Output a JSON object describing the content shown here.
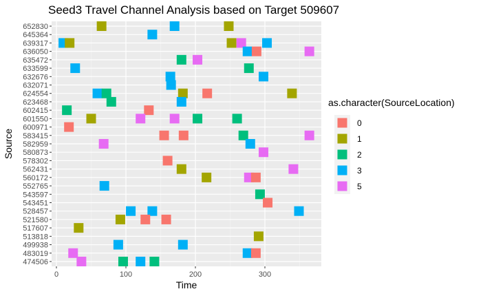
{
  "chart_data": {
    "type": "scatter",
    "title": "Seed3 Travel Channel Analysis based on Target 509607",
    "xlabel": "Time",
    "ylabel": "Source",
    "xlim": [
      0,
      370
    ],
    "xticks": [
      0,
      100,
      200,
      300
    ],
    "grid": true,
    "legend_placement": "right",
    "legend_title": "as.character(SourceLocation)",
    "legend": [
      {
        "key": "0",
        "label": "0",
        "color": "#F8766D"
      },
      {
        "key": "1",
        "label": "1",
        "color": "#A3A500"
      },
      {
        "key": "2",
        "label": "2",
        "color": "#00BF7D"
      },
      {
        "key": "3",
        "label": "3",
        "color": "#00B0F6"
      },
      {
        "key": "5",
        "label": "5",
        "color": "#E76BF3"
      }
    ],
    "categories": [
      "474506",
      "483019",
      "499938",
      "513818",
      "517607",
      "521580",
      "528457",
      "543451",
      "543597",
      "552765",
      "560172",
      "562431",
      "578302",
      "580873",
      "582959",
      "583415",
      "600971",
      "601550",
      "602415",
      "623468",
      "624554",
      "632071",
      "632676",
      "633599",
      "635472",
      "636050",
      "639317",
      "645364",
      "652830"
    ],
    "points": [
      {
        "source": "652830",
        "time": 65,
        "location": "1"
      },
      {
        "source": "652830",
        "time": 170,
        "location": "3"
      },
      {
        "source": "652830",
        "time": 248,
        "location": "1"
      },
      {
        "source": "645364",
        "time": 138,
        "location": "3"
      },
      {
        "source": "639317",
        "time": 10,
        "location": "3"
      },
      {
        "source": "639317",
        "time": 19,
        "location": "1"
      },
      {
        "source": "639317",
        "time": 252,
        "location": "1"
      },
      {
        "source": "639317",
        "time": 266,
        "location": "5"
      },
      {
        "source": "639317",
        "time": 303,
        "location": "3"
      },
      {
        "source": "636050",
        "time": 275,
        "location": "3"
      },
      {
        "source": "636050",
        "time": 288,
        "location": "0"
      },
      {
        "source": "636050",
        "time": 364,
        "location": "5"
      },
      {
        "source": "635472",
        "time": 180,
        "location": "2"
      },
      {
        "source": "635472",
        "time": 203,
        "location": "5"
      },
      {
        "source": "633599",
        "time": 27,
        "location": "3"
      },
      {
        "source": "633599",
        "time": 277,
        "location": "2"
      },
      {
        "source": "632676",
        "time": 164,
        "location": "3"
      },
      {
        "source": "632676",
        "time": 298,
        "location": "3"
      },
      {
        "source": "632071",
        "time": 165,
        "location": "3"
      },
      {
        "source": "624554",
        "time": 59,
        "location": "3"
      },
      {
        "source": "624554",
        "time": 72,
        "location": "2"
      },
      {
        "source": "624554",
        "time": 182,
        "location": "1"
      },
      {
        "source": "624554",
        "time": 217,
        "location": "0"
      },
      {
        "source": "624554",
        "time": 339,
        "location": "1"
      },
      {
        "source": "623468",
        "time": 79,
        "location": "2"
      },
      {
        "source": "623468",
        "time": 180,
        "location": "3"
      },
      {
        "source": "602415",
        "time": 15,
        "location": "2"
      },
      {
        "source": "602415",
        "time": 133,
        "location": "0"
      },
      {
        "source": "601550",
        "time": 50,
        "location": "1"
      },
      {
        "source": "601550",
        "time": 121,
        "location": "5"
      },
      {
        "source": "601550",
        "time": 170,
        "location": "5"
      },
      {
        "source": "601550",
        "time": 203,
        "location": "2"
      },
      {
        "source": "601550",
        "time": 260,
        "location": "2"
      },
      {
        "source": "600971",
        "time": 18,
        "location": "0"
      },
      {
        "source": "583415",
        "time": 155,
        "location": "0"
      },
      {
        "source": "583415",
        "time": 183,
        "location": "0"
      },
      {
        "source": "583415",
        "time": 269,
        "location": "2"
      },
      {
        "source": "583415",
        "time": 364,
        "location": "5"
      },
      {
        "source": "582959",
        "time": 68,
        "location": "5"
      },
      {
        "source": "582959",
        "time": 279,
        "location": "3"
      },
      {
        "source": "580873",
        "time": 298,
        "location": "5"
      },
      {
        "source": "578302",
        "time": 160,
        "location": "0"
      },
      {
        "source": "562431",
        "time": 180,
        "location": "1"
      },
      {
        "source": "562431",
        "time": 341,
        "location": "5"
      },
      {
        "source": "560172",
        "time": 216,
        "location": "1"
      },
      {
        "source": "560172",
        "time": 277,
        "location": "5"
      },
      {
        "source": "560172",
        "time": 287,
        "location": "0"
      },
      {
        "source": "552765",
        "time": 69,
        "location": "3"
      },
      {
        "source": "543597",
        "time": 293,
        "location": "2"
      },
      {
        "source": "543451",
        "time": 304,
        "location": "0"
      },
      {
        "source": "528457",
        "time": 107,
        "location": "3"
      },
      {
        "source": "528457",
        "time": 138,
        "location": "3"
      },
      {
        "source": "528457",
        "time": 349,
        "location": "3"
      },
      {
        "source": "521580",
        "time": 92,
        "location": "1"
      },
      {
        "source": "521580",
        "time": 128,
        "location": "0"
      },
      {
        "source": "521580",
        "time": 158,
        "location": "0"
      },
      {
        "source": "517607",
        "time": 32,
        "location": "1"
      },
      {
        "source": "513818",
        "time": 291,
        "location": "1"
      },
      {
        "source": "499938",
        "time": 89,
        "location": "3"
      },
      {
        "source": "499938",
        "time": 182,
        "location": "3"
      },
      {
        "source": "483019",
        "time": 24,
        "location": "5"
      },
      {
        "source": "483019",
        "time": 275,
        "location": "3"
      },
      {
        "source": "483019",
        "time": 287,
        "location": "0"
      },
      {
        "source": "474506",
        "time": 36,
        "location": "5"
      },
      {
        "source": "474506",
        "time": 96,
        "location": "2"
      },
      {
        "source": "474506",
        "time": 121,
        "location": "3"
      },
      {
        "source": "474506",
        "time": 141,
        "location": "2"
      }
    ]
  }
}
